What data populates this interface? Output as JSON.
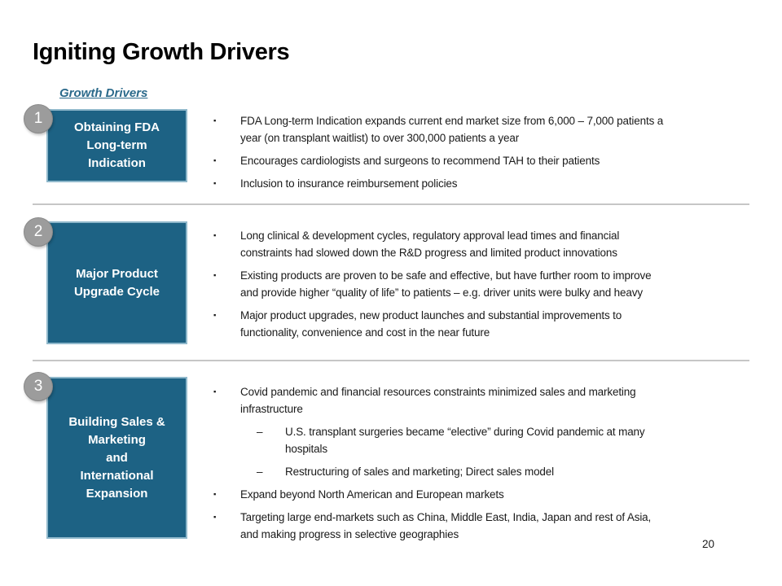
{
  "slide": {
    "title": "Igniting Growth Drivers",
    "section_heading": "Growth Drivers",
    "page_number": "20",
    "markers": {
      "square": "▪",
      "dash": "–"
    },
    "colors": {
      "box_fill": "#1d6284",
      "box_border": "#8fb8cb",
      "circle_fill": "#9c9c9c",
      "heading_teal": "#2b6a8b",
      "divider": "#c6c6c6",
      "body_text": "#1a1a1a"
    },
    "sections": [
      {
        "number": "1",
        "box_label": "Obtaining FDA\nLong-term\nIndication",
        "bullets": [
          {
            "level": 1,
            "text": "FDA Long-term Indication expands current end market size from 6,000 – 7,000 patients a\nyear (on transplant waitlist) to over 300,000 patients a year"
          },
          {
            "level": 1,
            "text": "Encourages cardiologists and surgeons to recommend TAH to their patients"
          },
          {
            "level": 1,
            "text": "Inclusion to insurance reimbursement policies"
          }
        ]
      },
      {
        "number": "2",
        "box_label": "Major Product\nUpgrade Cycle",
        "bullets": [
          {
            "level": 1,
            "text": "Long clinical & development cycles, regulatory approval lead times and financial\nconstraints had slowed down the R&D progress and limited product innovations"
          },
          {
            "level": 1,
            "text": "Existing products are proven to be safe and effective, but have further room to improve\nand provide higher “quality of life” to patients – e.g. driver units were bulky and heavy"
          },
          {
            "level": 1,
            "text": "Major product upgrades, new product launches and substantial improvements to\nfunctionality, convenience and cost in the near future"
          }
        ]
      },
      {
        "number": "3",
        "box_label": "Building Sales &\nMarketing\nand\nInternational\nExpansion",
        "bullets": [
          {
            "level": 1,
            "text": "Covid pandemic and financial resources constraints minimized sales and marketing\ninfrastructure"
          },
          {
            "level": 2,
            "text": "U.S. transplant surgeries became “elective” during Covid pandemic at many\nhospitals"
          },
          {
            "level": 2,
            "text": "Restructuring of sales and marketing; Direct sales model"
          },
          {
            "level": 1,
            "text": "Expand beyond North American and European markets"
          },
          {
            "level": 1,
            "text": "Targeting large end-markets such as China, Middle East, India, Japan and rest of Asia,\nand making progress in selective geographies"
          }
        ]
      }
    ]
  }
}
